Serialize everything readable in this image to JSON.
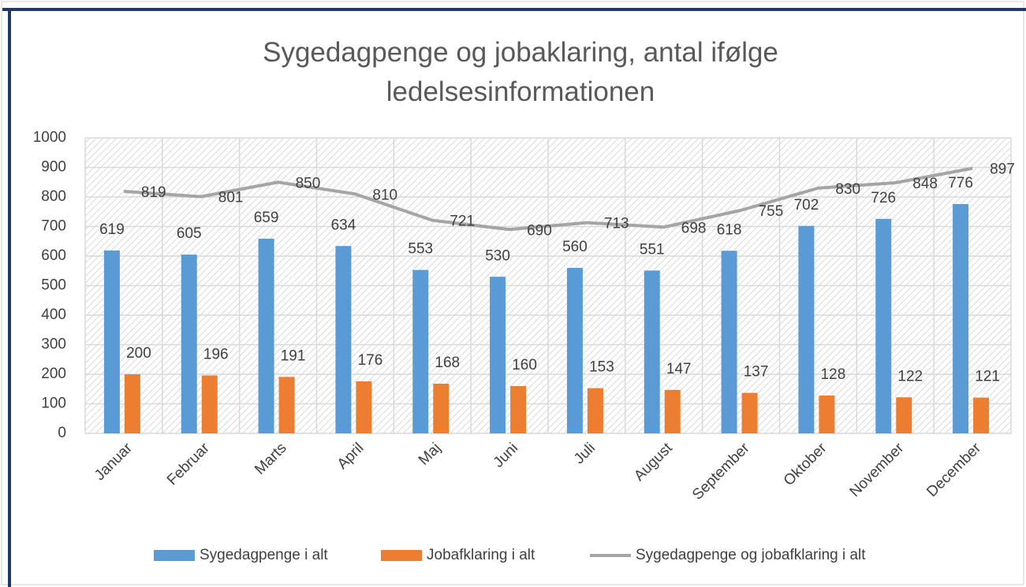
{
  "chart_data": {
    "type": "bar",
    "title": "Sygedagpenge og jobaklaring, antal ifølge ledelsesinformationen",
    "categories": [
      "Januar",
      "Februar",
      "Marts",
      "April",
      "Maj",
      "Juni",
      "Juli",
      "August",
      "September",
      "Oktober",
      "November",
      "December"
    ],
    "series": [
      {
        "name": "Sygedagpenge i alt",
        "color": "#5b9bd5",
        "type": "bar",
        "values": [
          619,
          605,
          659,
          634,
          553,
          530,
          560,
          551,
          618,
          702,
          726,
          776
        ]
      },
      {
        "name": "Jobafklaring i alt",
        "color": "#ed7d31",
        "type": "bar",
        "values": [
          200,
          196,
          191,
          176,
          168,
          160,
          153,
          147,
          137,
          128,
          122,
          121
        ]
      },
      {
        "name": "Sygedagpenge og jobafklaring i alt",
        "color": "#a5a5a5",
        "type": "line",
        "values": [
          819,
          801,
          850,
          810,
          721,
          690,
          713,
          698,
          755,
          830,
          848,
          897
        ]
      }
    ],
    "ylim": [
      0,
      1000
    ],
    "yticks": [
      0,
      100,
      200,
      300,
      400,
      500,
      600,
      700,
      800,
      900,
      1000
    ],
    "grid": true,
    "legend": "bottom"
  }
}
